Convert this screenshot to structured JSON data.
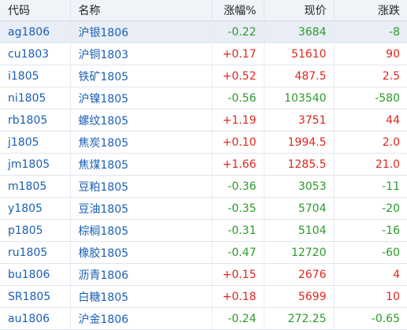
{
  "columns": [
    "代码",
    "名称",
    "涨幅%",
    "现价",
    "涨跌"
  ],
  "colors": {
    "up": "#e0261d",
    "down": "#2b9a2b",
    "link": "#1a5fb4",
    "header_bg": "#f0f3f8"
  },
  "rows": [
    {
      "code": "ag1806",
      "name": "沪银1806",
      "change_pct": "-0.22",
      "price": "3684",
      "change": "-8",
      "dir": "down"
    },
    {
      "code": "cu1803",
      "name": "沪铜1803",
      "change_pct": "+0.17",
      "price": "51610",
      "change": "90",
      "dir": "up"
    },
    {
      "code": "i1805",
      "name": "铁矿1805",
      "change_pct": "+0.52",
      "price": "487.5",
      "change": "2.5",
      "dir": "up"
    },
    {
      "code": "ni1805",
      "name": "沪镍1805",
      "change_pct": "-0.56",
      "price": "103540",
      "change": "-580",
      "dir": "down"
    },
    {
      "code": "rb1805",
      "name": "螺纹1805",
      "change_pct": "+1.19",
      "price": "3751",
      "change": "44",
      "dir": "up"
    },
    {
      "code": "j1805",
      "name": "焦炭1805",
      "change_pct": "+0.10",
      "price": "1994.5",
      "change": "2.0",
      "dir": "up"
    },
    {
      "code": "jm1805",
      "name": "焦煤1805",
      "change_pct": "+1.66",
      "price": "1285.5",
      "change": "21.0",
      "dir": "up"
    },
    {
      "code": "m1805",
      "name": "豆粕1805",
      "change_pct": "-0.36",
      "price": "3053",
      "change": "-11",
      "dir": "down"
    },
    {
      "code": "y1805",
      "name": "豆油1805",
      "change_pct": "-0.35",
      "price": "5704",
      "change": "-20",
      "dir": "down"
    },
    {
      "code": "p1805",
      "name": "棕榈1805",
      "change_pct": "-0.31",
      "price": "5104",
      "change": "-16",
      "dir": "down"
    },
    {
      "code": "ru1805",
      "name": "橡胶1805",
      "change_pct": "-0.47",
      "price": "12720",
      "change": "-60",
      "dir": "down"
    },
    {
      "code": "bu1806",
      "name": "沥青1806",
      "change_pct": "+0.15",
      "price": "2676",
      "change": "4",
      "dir": "up"
    },
    {
      "code": "SR1805",
      "name": "白糖1805",
      "change_pct": "+0.18",
      "price": "5699",
      "change": "10",
      "dir": "up"
    },
    {
      "code": "au1806",
      "name": "沪金1806",
      "change_pct": "-0.24",
      "price": "272.25",
      "change": "-0.65",
      "dir": "down"
    }
  ]
}
